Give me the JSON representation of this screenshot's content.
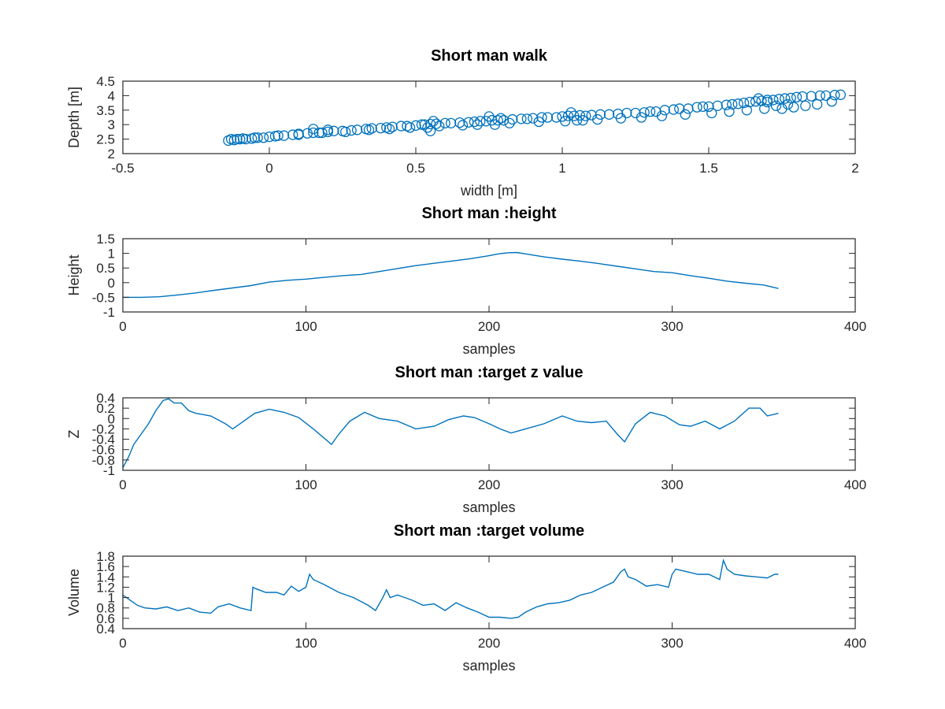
{
  "chart_data": [
    {
      "type": "scatter",
      "title": "Short man walk",
      "xlabel": "width [m]",
      "ylabel": "Depth [m]",
      "xlim": [
        -0.5,
        2
      ],
      "ylim": [
        2,
        4.5
      ],
      "xticks": [
        -0.5,
        0,
        0.5,
        1,
        1.5,
        2
      ],
      "yticks": [
        2,
        2.5,
        3,
        3.5,
        4,
        4.5
      ],
      "xtick_labels": [
        "-0.5",
        "0",
        "0.5",
        "1",
        "1.5",
        "2"
      ],
      "ytick_labels": [
        "2",
        "2.5",
        "3",
        "3.5",
        "4",
        "4.5"
      ],
      "marker": "open-circle",
      "color": "#0072BD",
      "series": [
        {
          "x": [
            -0.14,
            -0.12,
            -0.1,
            -0.08,
            -0.06,
            -0.04,
            -0.02,
            0.0,
            0.02,
            0.05,
            0.08,
            0.1,
            0.13,
            0.15,
            0.17,
            0.2,
            0.22,
            0.25,
            0.28,
            0.3,
            0.33,
            0.35,
            0.38,
            0.4,
            0.42,
            0.45,
            0.47,
            0.5,
            0.52,
            0.53,
            0.55,
            0.57,
            0.6,
            0.62,
            0.65,
            0.68,
            0.7,
            0.72,
            0.74,
            0.76,
            0.78,
            0.8,
            0.83,
            0.86,
            0.88,
            0.9,
            0.93,
            0.95,
            0.98,
            1.0,
            1.02,
            1.04,
            1.06,
            1.08,
            1.1,
            1.13,
            1.16,
            1.19,
            1.22,
            1.25,
            1.28,
            1.3,
            1.32,
            1.35,
            1.38,
            1.4,
            1.43,
            1.46,
            1.48,
            1.5,
            1.53,
            1.56,
            1.58,
            1.6,
            1.62,
            1.64,
            1.66,
            1.68,
            1.7,
            1.72,
            1.74,
            1.76,
            1.78,
            1.8,
            1.82,
            1.85,
            1.88,
            1.9,
            1.93,
            1.95,
            -0.13,
            -0.11,
            -0.09,
            -0.05,
            0.03,
            0.1,
            0.18,
            0.26,
            0.34,
            0.41,
            0.48,
            0.54,
            0.58,
            0.66,
            0.71,
            0.77,
            0.82,
            0.92,
            1.01,
            1.05,
            1.12,
            1.2,
            1.27,
            1.34,
            1.42,
            1.51,
            1.57,
            1.63,
            1.69,
            1.75,
            1.79,
            1.83,
            1.87,
            1.92,
            0.15,
            0.2,
            0.55,
            0.56,
            0.75,
            0.79,
            1.03,
            1.07,
            1.67,
            1.7,
            1.73,
            1.77
          ],
          "y": [
            2.45,
            2.47,
            2.5,
            2.5,
            2.52,
            2.55,
            2.55,
            2.58,
            2.6,
            2.62,
            2.65,
            2.68,
            2.7,
            2.72,
            2.72,
            2.75,
            2.78,
            2.78,
            2.8,
            2.82,
            2.85,
            2.87,
            2.88,
            2.9,
            2.92,
            2.95,
            2.95,
            2.97,
            3.0,
            3.0,
            3.02,
            3.03,
            3.05,
            3.05,
            3.07,
            3.08,
            3.1,
            3.12,
            3.12,
            3.15,
            3.15,
            3.15,
            3.18,
            3.2,
            3.2,
            3.22,
            3.25,
            3.25,
            3.25,
            3.28,
            3.3,
            3.3,
            3.32,
            3.3,
            3.33,
            3.35,
            3.35,
            3.37,
            3.4,
            3.4,
            3.42,
            3.45,
            3.45,
            3.5,
            3.52,
            3.55,
            3.55,
            3.6,
            3.62,
            3.62,
            3.65,
            3.68,
            3.7,
            3.72,
            3.75,
            3.78,
            3.8,
            3.82,
            3.85,
            3.85,
            3.88,
            3.9,
            3.92,
            3.95,
            3.97,
            3.98,
            4.0,
            4.0,
            4.02,
            4.03,
            2.5,
            2.5,
            2.52,
            2.55,
            2.62,
            2.65,
            2.72,
            2.75,
            2.82,
            2.85,
            2.9,
            2.9,
            2.95,
            2.98,
            3.0,
            3.0,
            3.05,
            3.1,
            3.12,
            3.15,
            3.18,
            3.22,
            3.25,
            3.3,
            3.35,
            3.4,
            3.45,
            3.5,
            3.55,
            3.55,
            3.6,
            3.65,
            3.7,
            3.8,
            2.85,
            2.82,
            2.78,
            3.12,
            3.28,
            3.22,
            3.42,
            3.15,
            3.9,
            3.78,
            3.65,
            3.7
          ]
        }
      ]
    },
    {
      "type": "line",
      "title": "Short man :height",
      "xlabel": "samples",
      "ylabel": "Height",
      "xlim": [
        0,
        400
      ],
      "ylim": [
        -1,
        1.5
      ],
      "xticks": [
        0,
        100,
        200,
        300,
        400
      ],
      "yticks": [
        -1,
        -0.5,
        0,
        0.5,
        1,
        1.5
      ],
      "xtick_labels": [
        "0",
        "100",
        "200",
        "300",
        "400"
      ],
      "ytick_labels": [
        "-1",
        "-0.5",
        "0",
        "0.5",
        "1",
        "1.5"
      ],
      "color": "#0072BD",
      "series": [
        {
          "x": [
            0,
            10,
            20,
            30,
            40,
            50,
            60,
            70,
            80,
            90,
            100,
            110,
            120,
            130,
            140,
            150,
            160,
            170,
            180,
            190,
            200,
            205,
            210,
            215,
            220,
            230,
            240,
            250,
            260,
            270,
            280,
            290,
            300,
            310,
            320,
            330,
            340,
            350,
            358
          ],
          "y": [
            -0.5,
            -0.5,
            -0.48,
            -0.42,
            -0.35,
            -0.26,
            -0.18,
            -0.1,
            0.02,
            0.08,
            0.12,
            0.18,
            0.24,
            0.28,
            0.38,
            0.48,
            0.58,
            0.66,
            0.74,
            0.82,
            0.92,
            0.98,
            1.02,
            1.03,
            0.98,
            0.88,
            0.8,
            0.73,
            0.65,
            0.56,
            0.47,
            0.38,
            0.34,
            0.24,
            0.15,
            0.05,
            -0.02,
            -0.08,
            -0.2
          ]
        }
      ]
    },
    {
      "type": "line",
      "title": "Short man :target z value",
      "xlabel": "samples",
      "ylabel": "Z",
      "xlim": [
        0,
        400
      ],
      "ylim": [
        -1,
        0.4
      ],
      "xticks": [
        0,
        100,
        200,
        300,
        400
      ],
      "yticks": [
        -1,
        -0.8,
        -0.6,
        -0.4,
        -0.2,
        0,
        0.2,
        0.4
      ],
      "xtick_labels": [
        "0",
        "100",
        "200",
        "300",
        "400"
      ],
      "ytick_labels": [
        "-1",
        "-0.8",
        "-0.6",
        "-0.4",
        "-0.2",
        "0",
        "0.2",
        "0.4"
      ],
      "color": "#0072BD",
      "series": [
        {
          "x": [
            0,
            3,
            6,
            10,
            14,
            18,
            22,
            25,
            28,
            32,
            36,
            40,
            48,
            56,
            60,
            64,
            72,
            80,
            88,
            96,
            104,
            110,
            114,
            118,
            124,
            132,
            140,
            150,
            160,
            170,
            178,
            186,
            192,
            200,
            206,
            212,
            220,
            230,
            240,
            248,
            256,
            264,
            270,
            274,
            280,
            288,
            296,
            304,
            310,
            318,
            326,
            334,
            342,
            348,
            352,
            358
          ],
          "y": [
            -0.95,
            -0.75,
            -0.5,
            -0.3,
            -0.1,
            0.15,
            0.35,
            0.38,
            0.3,
            0.3,
            0.15,
            0.1,
            0.05,
            -0.1,
            -0.2,
            -0.1,
            0.1,
            0.18,
            0.12,
            0.02,
            -0.2,
            -0.38,
            -0.5,
            -0.3,
            -0.05,
            0.12,
            0.0,
            -0.05,
            -0.2,
            -0.15,
            -0.02,
            0.05,
            0.02,
            -0.1,
            -0.2,
            -0.28,
            -0.2,
            -0.1,
            0.05,
            -0.05,
            -0.08,
            -0.05,
            -0.3,
            -0.45,
            -0.1,
            0.12,
            0.05,
            -0.12,
            -0.15,
            -0.05,
            -0.2,
            -0.05,
            0.2,
            0.2,
            0.05,
            0.1
          ]
        }
      ]
    },
    {
      "type": "line",
      "title": "Short man :target volume",
      "xlabel": "samples",
      "ylabel": "Volume",
      "xlim": [
        0,
        400
      ],
      "ylim": [
        0.4,
        1.8
      ],
      "xticks": [
        0,
        100,
        200,
        300,
        400
      ],
      "yticks": [
        0.4,
        0.6,
        0.8,
        1,
        1.2,
        1.4,
        1.6,
        1.8
      ],
      "xtick_labels": [
        "0",
        "100",
        "200",
        "300",
        "400"
      ],
      "ytick_labels": [
        "0.4",
        "0.6",
        "0.8",
        "1",
        "1.2",
        "1.4",
        "1.6",
        "1.8"
      ],
      "color": "#0072BD",
      "series": [
        {
          "x": [
            0,
            4,
            8,
            12,
            18,
            24,
            30,
            36,
            42,
            48,
            52,
            58,
            64,
            70,
            71,
            72,
            78,
            84,
            88,
            92,
            96,
            100,
            102,
            104,
            110,
            118,
            126,
            134,
            138,
            142,
            144,
            146,
            150,
            158,
            164,
            170,
            176,
            182,
            188,
            194,
            200,
            206,
            212,
            216,
            220,
            226,
            232,
            238,
            244,
            250,
            256,
            262,
            268,
            272,
            274,
            276,
            280,
            286,
            292,
            298,
            300,
            302,
            308,
            314,
            320,
            326,
            328,
            330,
            334,
            340,
            346,
            352,
            356,
            358
          ],
          "y": [
            1.05,
            0.95,
            0.85,
            0.8,
            0.78,
            0.82,
            0.75,
            0.8,
            0.72,
            0.7,
            0.82,
            0.88,
            0.8,
            0.75,
            1.2,
            1.18,
            1.1,
            1.1,
            1.05,
            1.22,
            1.12,
            1.2,
            1.45,
            1.35,
            1.25,
            1.1,
            1.0,
            0.85,
            0.75,
            1.0,
            1.15,
            1.0,
            1.05,
            0.95,
            0.85,
            0.88,
            0.75,
            0.9,
            0.8,
            0.72,
            0.62,
            0.62,
            0.6,
            0.62,
            0.72,
            0.82,
            0.88,
            0.9,
            0.95,
            1.05,
            1.1,
            1.2,
            1.3,
            1.5,
            1.55,
            1.4,
            1.35,
            1.22,
            1.25,
            1.2,
            1.45,
            1.55,
            1.5,
            1.45,
            1.45,
            1.35,
            1.72,
            1.55,
            1.45,
            1.42,
            1.4,
            1.38,
            1.45,
            1.45
          ]
        }
      ]
    }
  ]
}
